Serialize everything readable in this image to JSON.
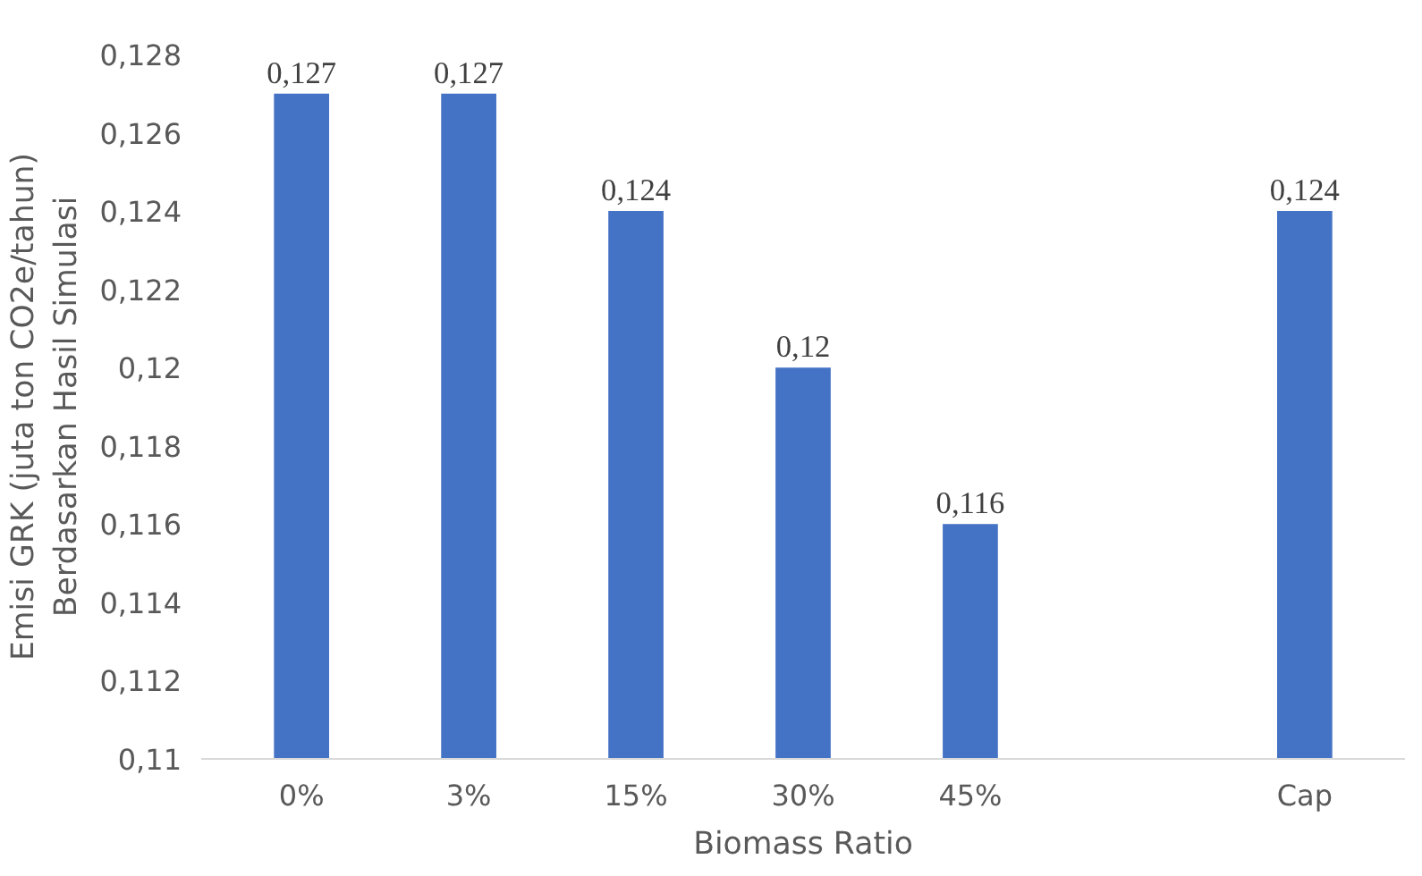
{
  "chart_data": {
    "type": "bar",
    "xlabel": "Biomass Ratio",
    "ylabel": "Emisi GRK (juta ton CO2e/tahun)\nBerdasarkan Hasil Simulasi",
    "categories": [
      "0%",
      "3%",
      "15%",
      "30%",
      "45%",
      null,
      "Cap"
    ],
    "values": [
      0.127,
      0.127,
      0.124,
      0.12,
      0.116,
      null,
      0.124
    ],
    "value_labels": [
      "0,127",
      "0,127",
      "0,124",
      "0,12",
      "0,116",
      null,
      "0,124"
    ],
    "color": "#4472c4",
    "ylim": [
      0.11,
      0.128
    ],
    "yticks": [
      {
        "value": 0.11,
        "label": "0,11"
      },
      {
        "value": 0.112,
        "label": "0,112"
      },
      {
        "value": 0.114,
        "label": "0,114"
      },
      {
        "value": 0.116,
        "label": "0,116"
      },
      {
        "value": 0.118,
        "label": "0,118"
      },
      {
        "value": 0.12,
        "label": "0,12"
      },
      {
        "value": 0.122,
        "label": "0,122"
      },
      {
        "value": 0.124,
        "label": "0,124"
      },
      {
        "value": 0.126,
        "label": "0,126"
      },
      {
        "value": 0.128,
        "label": "0,128"
      }
    ],
    "grid": false
  }
}
